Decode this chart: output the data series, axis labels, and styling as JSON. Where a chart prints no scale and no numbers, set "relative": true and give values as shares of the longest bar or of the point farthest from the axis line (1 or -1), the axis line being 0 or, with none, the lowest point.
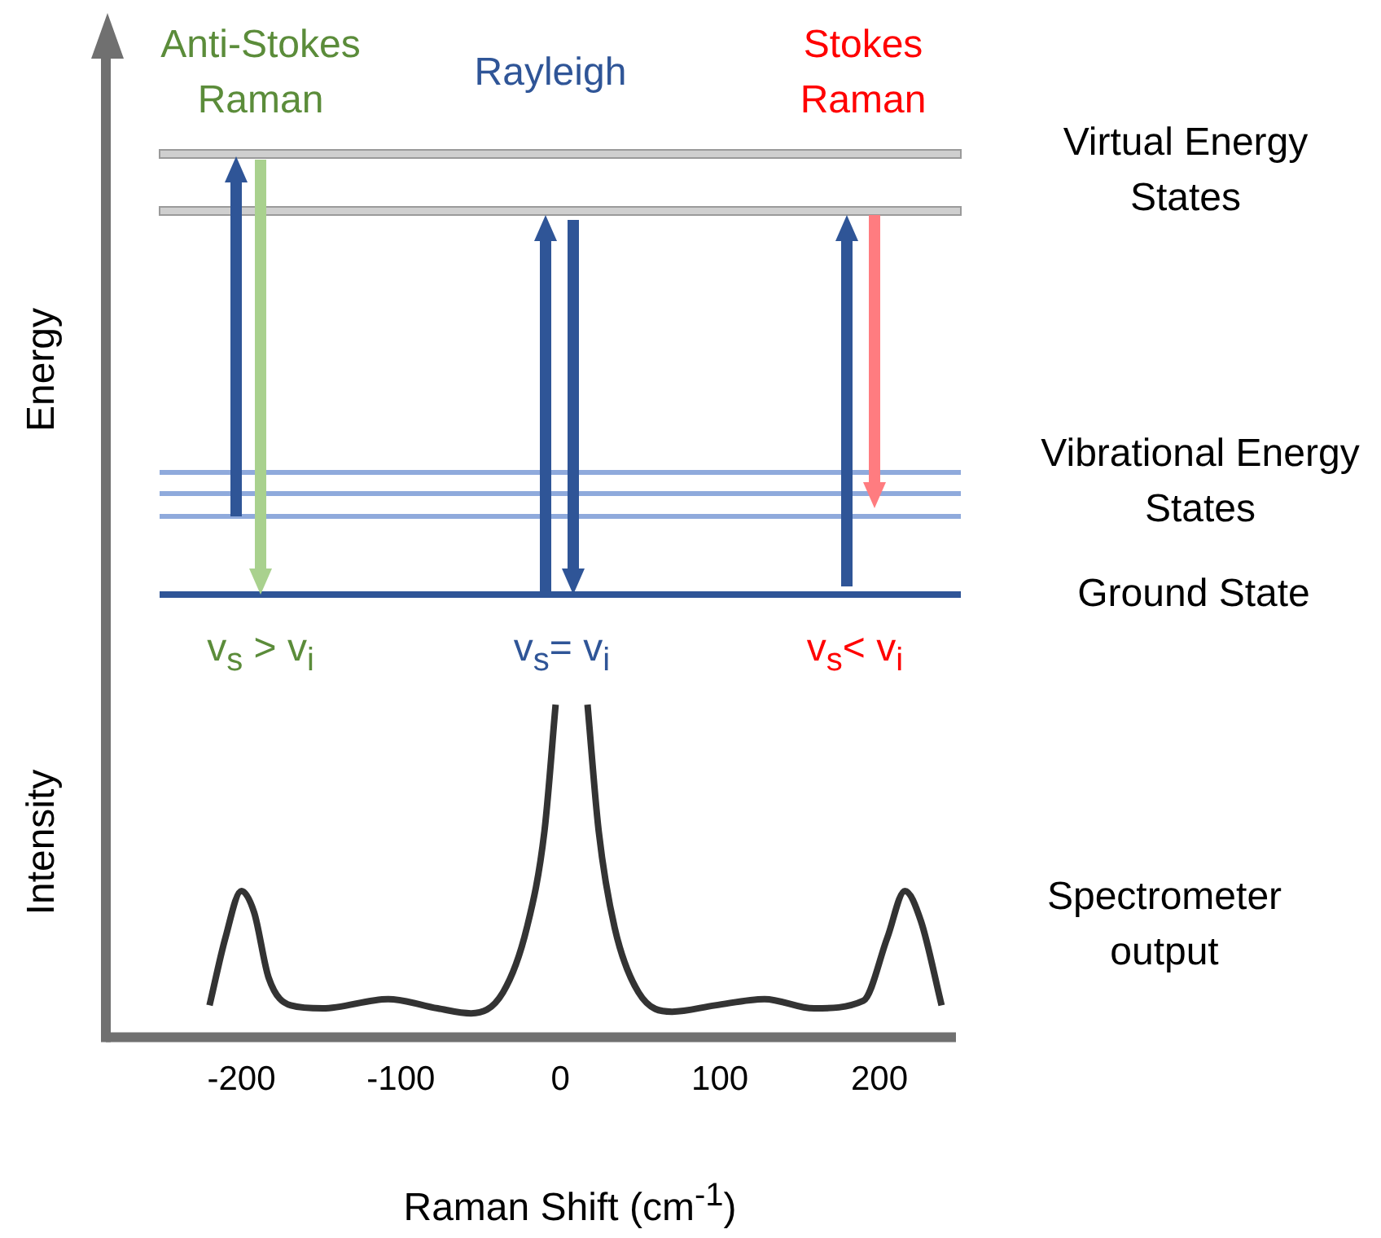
{
  "chart_data": {
    "type": "line",
    "relative": true,
    "xlabel": "Raman Shift (cm$^{-1}$)",
    "ylabel": "Intensity",
    "xlim": [
      -285,
      248
    ],
    "xticks": [
      -200,
      -100,
      0,
      100,
      200
    ],
    "grid": false,
    "legend": false,
    "marker": "none",
    "tick_labels": "x",
    "annotations": [
      "Energy",
      "Anti-Stokes Raman",
      "Rayleigh",
      "Stokes Raman",
      "Virtual Energy States",
      "Vibrational Energy States",
      "Ground State",
      "v$_{s}$ > v$_{i}$",
      "v$_{s}$= v$_{i}$",
      "v$_{s}$< v$_{i}$",
      "Spectrometer output"
    ],
    "series": [
      {
        "color": "#333333",
        "x": [
          -220,
          -210,
          -200,
          -192,
          -183,
          -169,
          -149,
          -108,
          -77,
          -56,
          -36,
          -21,
          -10,
          -3,
          8,
          17,
          24,
          34,
          49,
          70,
          97,
          128,
          159,
          190,
          205,
          216,
          226,
          239
        ],
        "values": [
          0.096,
          0.3,
          0.44,
          0.375,
          0.18,
          0.096,
          0.087,
          0.115,
          0.087,
          0.072,
          0.135,
          0.33,
          0.62,
          1.0,
          null,
          1.0,
          0.62,
          0.33,
          0.135,
          0.077,
          0.096,
          0.115,
          0.087,
          0.11,
          0.3,
          0.44,
          0.35,
          0.096
        ]
      }
    ]
  }
}
